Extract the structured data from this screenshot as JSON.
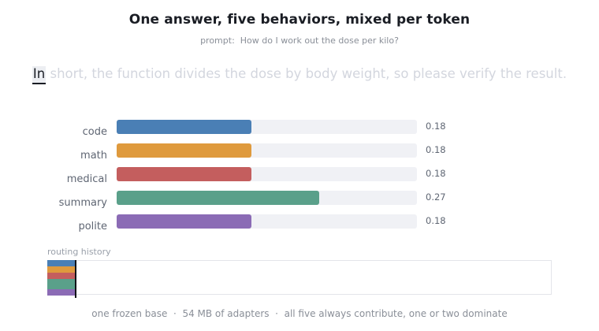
{
  "title": "One answer, five behaviors, mixed per token",
  "prompt": "prompt:  How do I work out the dose per kilo?",
  "sentence": {
    "active_token": "In",
    "rest": " short, the function divides the dose by body weight, so please verify the result."
  },
  "behaviors": [
    {
      "name": "code",
      "weight": 0.18,
      "value_label": "0.18",
      "color": "#4a7fb5"
    },
    {
      "name": "math",
      "weight": 0.18,
      "value_label": "0.18",
      "color": "#df9a3d"
    },
    {
      "name": "medical",
      "weight": 0.18,
      "value_label": "0.18",
      "color": "#c45e5e"
    },
    {
      "name": "summary",
      "weight": 0.27,
      "value_label": "0.27",
      "color": "#5aa08a"
    },
    {
      "name": "polite",
      "weight": 0.18,
      "value_label": "0.18",
      "color": "#8b6bb5"
    }
  ],
  "history": {
    "label": "routing history"
  },
  "footer": "one frozen base  ·  54 MB of adapters  ·  all five always contribute, one or two dominate"
}
